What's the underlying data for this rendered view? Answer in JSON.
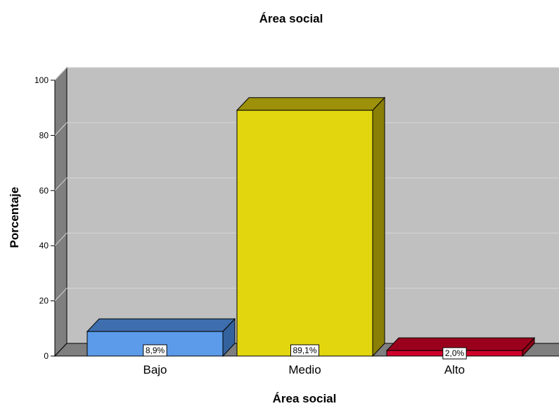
{
  "chart_data": {
    "type": "bar",
    "title": "Área social",
    "xlabel": "Área social",
    "ylabel": "Porcentaje",
    "categories": [
      "Bajo",
      "Medio",
      "Alto"
    ],
    "values": [
      8.9,
      89.1,
      2.0
    ],
    "data_labels": [
      "8,9%",
      "89,1%",
      "2,0%"
    ],
    "ylim": [
      0,
      100
    ],
    "yticks": [
      0,
      20,
      40,
      60,
      80,
      100
    ],
    "ytick_labels": [
      "0",
      "20",
      "40",
      "60",
      "80",
      "100"
    ],
    "grid": true,
    "bar_colors": [
      "#5b9bea",
      "#e2d60f",
      "#d0002a"
    ],
    "bar_side_colors": [
      "#34629c",
      "#8a7f06",
      "#8a0016"
    ],
    "bar_top_colors": [
      "#3e6ead",
      "#9c9108",
      "#9a001c"
    ],
    "plot_background": "#c0c0c0",
    "floor_color": "#7f7f7f",
    "gridline_color": "#d6d6d6"
  }
}
